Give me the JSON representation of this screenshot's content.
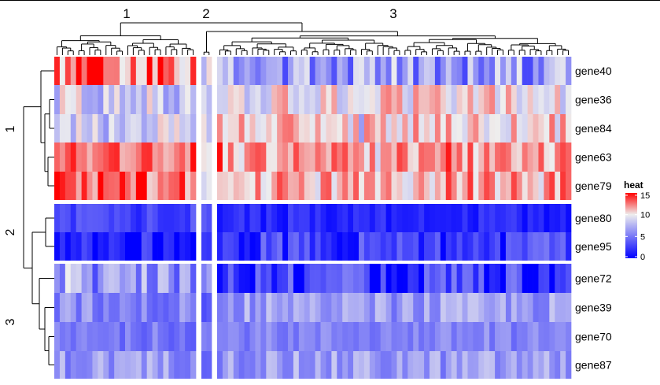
{
  "chart_data": {
    "type": "heatmap",
    "title": "",
    "column_split_labels": [
      "1",
      "2",
      "3"
    ],
    "row_split_labels": [
      "1",
      "2",
      "3"
    ],
    "column_split_sizes": [
      26,
      2,
      65
    ],
    "rows": [
      {
        "name": "gene40",
        "group": "1",
        "base": [
          12.5,
          8.5,
          6.5
        ],
        "spread": 3.5
      },
      {
        "name": "gene36",
        "group": "1",
        "base": [
          8.5,
          9.5,
          10.0
        ],
        "spread": 2.5
      },
      {
        "name": "gene84",
        "group": "1",
        "base": [
          9.0,
          9.0,
          10.5
        ],
        "spread": 2.2
      },
      {
        "name": "gene63",
        "group": "1",
        "base": [
          13.0,
          11.0,
          11.5
        ],
        "spread": 2.2
      },
      {
        "name": "gene79",
        "group": "1",
        "base": [
          13.0,
          10.0,
          11.5
        ],
        "spread": 2.5
      },
      {
        "name": "gene80",
        "group": "2",
        "base": [
          3.0,
          3.0,
          1.5
        ],
        "spread": 1.2
      },
      {
        "name": "gene95",
        "group": "2",
        "base": [
          1.2,
          1.5,
          2.5
        ],
        "spread": 2.5
      },
      {
        "name": "gene72",
        "group": "3",
        "base": [
          6.0,
          7.5,
          2.5
        ],
        "spread": 3.0
      },
      {
        "name": "gene39",
        "group": "3",
        "base": [
          5.5,
          5.0,
          6.5
        ],
        "spread": 2.0
      },
      {
        "name": "gene70",
        "group": "3",
        "base": [
          5.0,
          5.0,
          5.5
        ],
        "spread": 1.2
      },
      {
        "name": "gene87",
        "group": "3",
        "base": [
          6.5,
          6.0,
          6.5
        ],
        "spread": 2.0
      }
    ],
    "color_scale": {
      "title": "heat",
      "min": 0,
      "mid": 10,
      "max": 15,
      "low_color": "#0000FF",
      "mid_color": "#EEEEEE",
      "high_color": "#FF0000",
      "ticks": [
        15,
        10,
        5,
        0
      ]
    },
    "colors": {
      "separator": "#FFFFFF",
      "dendrogram": "#000000"
    }
  }
}
